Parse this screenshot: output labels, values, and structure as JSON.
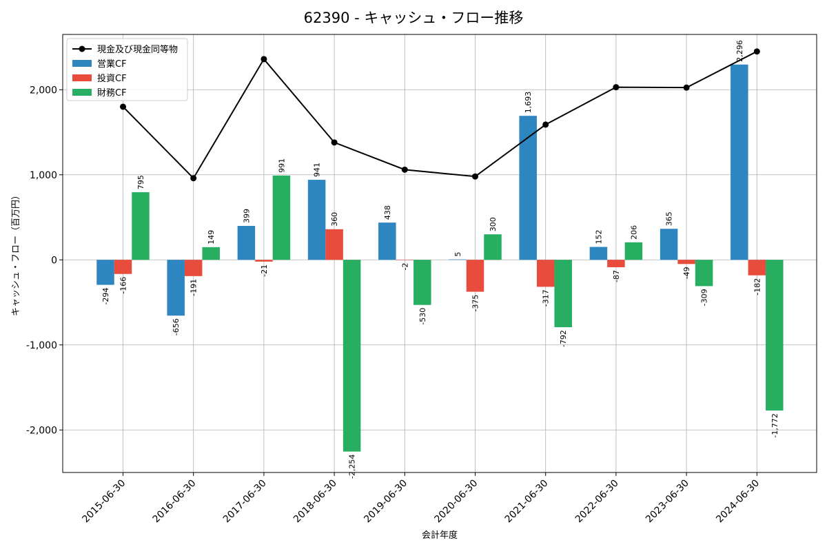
{
  "chart_data": {
    "type": "bar",
    "title": "62390 - キャッシュ・フロー推移",
    "xlabel": "会計年度",
    "ylabel": "キャッシュ・フロー（百万円）",
    "categories": [
      "2015-06-30",
      "2016-06-30",
      "2017-06-30",
      "2018-06-30",
      "2019-06-30",
      "2020-06-30",
      "2021-06-30",
      "2022-06-30",
      "2023-06-30",
      "2024-06-30"
    ],
    "series": [
      {
        "name": "営業CF",
        "type": "bar",
        "color": "#2e86c1",
        "values": [
          -294,
          -656,
          399,
          941,
          438,
          5,
          1693,
          152,
          365,
          2296
        ],
        "labels": [
          "-294",
          "-656",
          "399",
          "941",
          "438",
          "5",
          "1,693",
          "152",
          "365",
          "2,296"
        ]
      },
      {
        "name": "投資CF",
        "type": "bar",
        "color": "#e74c3c",
        "values": [
          -166,
          -191,
          -21,
          360,
          -2,
          -375,
          -317,
          -87,
          -49,
          -182
        ],
        "labels": [
          "-166",
          "-191",
          "-21",
          "360",
          "-2",
          "-375",
          "-317",
          "-87",
          "-49",
          "-182"
        ]
      },
      {
        "name": "財務CF",
        "type": "bar",
        "color": "#27ae60",
        "values": [
          795,
          149,
          991,
          -2254,
          -530,
          300,
          -792,
          206,
          -309,
          -1772
        ],
        "labels": [
          "795",
          "149",
          "991",
          "-2,254",
          "-530",
          "300",
          "-792",
          "206",
          "-309",
          "-1,772"
        ]
      },
      {
        "name": "現金及び現金同等物",
        "type": "line",
        "color": "#000000",
        "values": [
          1800,
          960,
          2360,
          1380,
          1060,
          980,
          1590,
          2030,
          2025,
          2450
        ]
      }
    ],
    "ylim": [
      -2500,
      2650
    ],
    "yticks": [
      -2000,
      -1000,
      0,
      1000,
      2000
    ],
    "ytick_labels": [
      "-2,000",
      "-1,000",
      "0",
      "1,000",
      "2,000"
    ],
    "grid": true,
    "legend": "top-left"
  }
}
